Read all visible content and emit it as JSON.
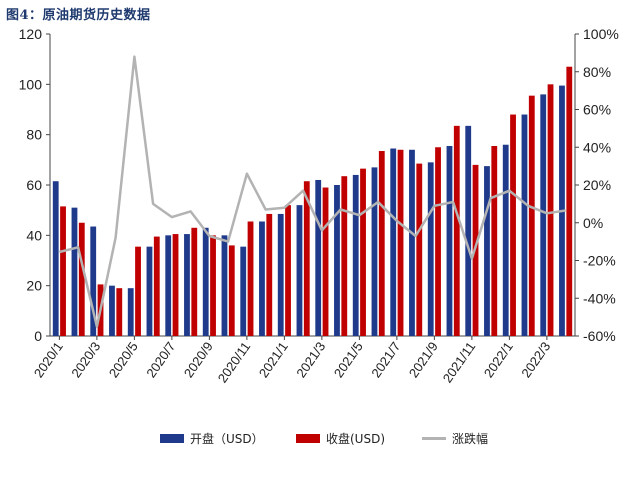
{
  "title": "图4：原油期货历史数据",
  "chart_data": {
    "type": "bar",
    "x": [
      "2020/1",
      "2020/2",
      "2020/3",
      "2020/4",
      "2020/5",
      "2020/6",
      "2020/7",
      "2020/8",
      "2020/9",
      "2020/10",
      "2020/11",
      "2020/12",
      "2021/1",
      "2021/2",
      "2021/3",
      "2021/4",
      "2021/5",
      "2021/6",
      "2021/7",
      "2021/8",
      "2021/9",
      "2021/10",
      "2021/11",
      "2021/12",
      "2022/1",
      "2022/2",
      "2022/3",
      "2022/4"
    ],
    "xtick_labels": [
      "2020/1",
      "2020/3",
      "2020/5",
      "2020/7",
      "2020/9",
      "2020/11",
      "2021/1",
      "2021/3",
      "2021/5",
      "2021/7",
      "2021/9",
      "2021/11",
      "2022/1",
      "2022/3"
    ],
    "series": [
      {
        "name": "开盘（USD）",
        "axis": "left",
        "kind": "bar",
        "color": "#1f3a8a",
        "values": [
          61.5,
          51,
          43.5,
          20,
          19,
          35.5,
          40,
          40.5,
          43,
          40,
          35.5,
          45.5,
          48.5,
          52,
          62,
          60,
          64,
          67,
          74.5,
          74,
          69,
          75.5,
          83.5,
          67.5,
          76,
          88,
          96,
          99.5
        ]
      },
      {
        "name": "收盘(USD)",
        "axis": "left",
        "kind": "bar",
        "color": "#c00000",
        "values": [
          51.5,
          45,
          20.5,
          19,
          35.5,
          39.5,
          40.5,
          43,
          40,
          36,
          45.5,
          48.5,
          52,
          61.5,
          59,
          63.5,
          66.5,
          73.5,
          74,
          68.5,
          75,
          83.5,
          68,
          75.5,
          88,
          95.5,
          100,
          107
        ]
      },
      {
        "name": "涨跌幅",
        "axis": "right",
        "kind": "line",
        "color": "#b3b3b3",
        "values": [
          -15.5,
          -13,
          -55,
          -8,
          88,
          10,
          3,
          6,
          -7,
          -10,
          26,
          7,
          8,
          17,
          -4,
          7,
          4,
          11,
          1,
          -7,
          9,
          11,
          -19,
          13,
          17,
          9,
          5,
          6.5
        ]
      }
    ],
    "ylim": [
      0,
      120
    ],
    "yticks": [
      0,
      20,
      40,
      60,
      80,
      100,
      120
    ],
    "y2lim": [
      -60,
      100
    ],
    "y2ticks": [
      "-60%",
      "-40%",
      "-20%",
      "0%",
      "20%",
      "40%",
      "60%",
      "80%",
      "100%"
    ],
    "legend_position": "bottom"
  }
}
